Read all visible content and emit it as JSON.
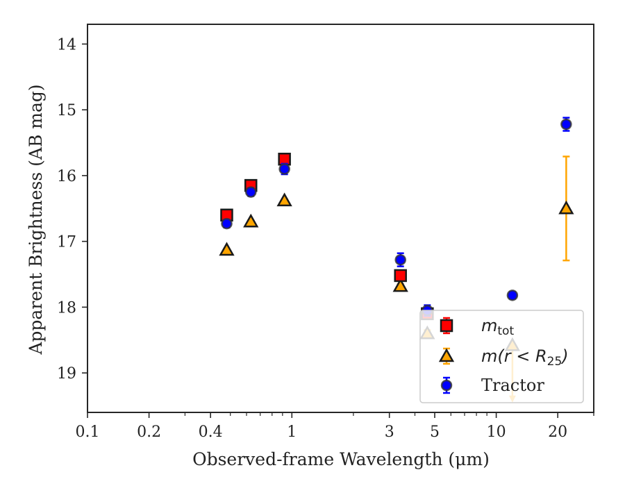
{
  "chart_data": {
    "type": "scatter",
    "title": "",
    "xlabel": "Observed-frame Wavelength (μm)",
    "ylabel": "Apparent Brightness (AB mag)",
    "xscale": "log",
    "yinverted": true,
    "xlim": [
      0.1,
      30
    ],
    "ylim": [
      19.6,
      13.7
    ],
    "xticks": [
      0.1,
      0.2,
      0.4,
      1,
      3,
      5,
      10,
      20
    ],
    "xticklabels": [
      "0.1",
      "0.2",
      "0.4",
      "1",
      "3",
      "5",
      "10",
      "20"
    ],
    "yticks": [
      14,
      15,
      16,
      17,
      18,
      19
    ],
    "yticklabels": [
      "14",
      "15",
      "16",
      "17",
      "18",
      "19"
    ],
    "grid": false,
    "legend_position": "bottom-right",
    "legend": [
      {
        "label": "m_tot",
        "marker": "square",
        "color": "#ff0000"
      },
      {
        "label": "m(r < R_25)",
        "marker": "triangle",
        "color": "#ffa500"
      },
      {
        "label": "Tractor",
        "marker": "circle",
        "color": "#0000ff"
      }
    ],
    "series": [
      {
        "name": "m_tot",
        "marker": "square",
        "color": "#ff0000",
        "errcolor": "#ff0000",
        "points": [
          {
            "x": 0.48,
            "y": 16.6,
            "err": 0.06
          },
          {
            "x": 0.63,
            "y": 16.15,
            "err": 0.06
          },
          {
            "x": 0.92,
            "y": 15.75,
            "err": 0.08
          },
          {
            "x": 3.4,
            "y": 17.52,
            "err": 0.06
          },
          {
            "x": 4.6,
            "y": 18.1,
            "err": 0.08
          }
        ]
      },
      {
        "name": "m(r < R_25)",
        "marker": "triangle",
        "color": "#ffa500",
        "errcolor": "#ffa500",
        "points": [
          {
            "x": 0.48,
            "y": 17.13,
            "err": 0.02
          },
          {
            "x": 0.63,
            "y": 16.7,
            "err": 0.02
          },
          {
            "x": 0.92,
            "y": 16.38,
            "err": 0.02
          },
          {
            "x": 3.4,
            "y": 17.68,
            "err": 0.03
          },
          {
            "x": 4.6,
            "y": 18.4,
            "err": 0.05
          },
          {
            "x": 12.0,
            "y": 18.58,
            "err": 0.0
          },
          {
            "x": 22.0,
            "y": 16.5,
            "err": 0.79
          }
        ]
      },
      {
        "name": "Tractor",
        "marker": "circle",
        "color": "#0000ff",
        "errcolor": "#0000ff",
        "points": [
          {
            "x": 0.48,
            "y": 16.73,
            "err": 0.06
          },
          {
            "x": 0.63,
            "y": 16.25,
            "err": 0.06
          },
          {
            "x": 0.92,
            "y": 15.9,
            "err": 0.08
          },
          {
            "x": 3.4,
            "y": 17.28,
            "err": 0.1
          },
          {
            "x": 4.6,
            "y": 18.05,
            "err": 0.08
          },
          {
            "x": 12.0,
            "y": 17.82,
            "err": 0.05
          },
          {
            "x": 22.0,
            "y": 15.22,
            "err": 0.1
          }
        ]
      }
    ],
    "upper_limit_arrow": {
      "x": 12.0,
      "y_from": 18.58,
      "y_to": 19.45,
      "color": "#ffa500"
    }
  }
}
